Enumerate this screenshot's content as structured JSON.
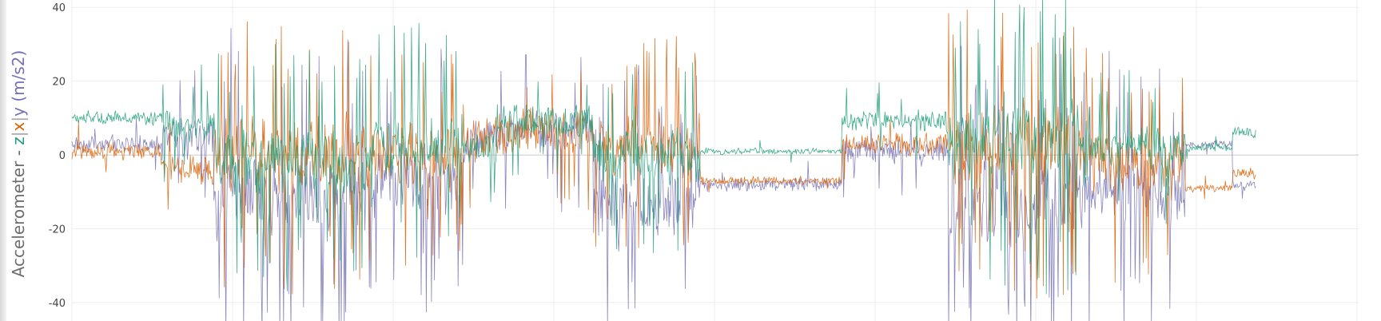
{
  "chart_data": {
    "type": "line",
    "title": "",
    "xlabel": "",
    "ylabel": {
      "prefix": "Accelerometer - ",
      "z": "z",
      "sep1": "|",
      "x": "x",
      "sep2": "|",
      "y": "y (m/s2)"
    },
    "ylim": [
      -45,
      42
    ],
    "yticks": [
      {
        "value": 40,
        "label": "40"
      },
      {
        "value": 20,
        "label": "20"
      },
      {
        "value": 0,
        "label": "0"
      },
      {
        "value": -20,
        "label": "-20"
      },
      {
        "value": -40,
        "label": "-40"
      }
    ],
    "grid": true,
    "legend": "none",
    "colors": {
      "z": "#1b9e77",
      "x": "#d95f02",
      "y": "#7570b3",
      "grid": "#eeeeee",
      "zero": "#cccccc"
    },
    "series": [
      {
        "key": "z",
        "color": "#1b9e77",
        "segments": [
          {
            "x0": 0.0,
            "x1": 0.075,
            "base": 10,
            "amp": 2.5,
            "spike": 0.04
          },
          {
            "x0": 0.075,
            "x1": 0.12,
            "base": 8,
            "amp": 6,
            "spike": 0.15
          },
          {
            "x0": 0.12,
            "x1": 0.25,
            "base": -2,
            "amp": 12,
            "spike": 0.35
          },
          {
            "x0": 0.25,
            "x1": 0.33,
            "base": 3,
            "amp": 12,
            "spike": 0.3
          },
          {
            "x0": 0.33,
            "x1": 0.36,
            "base": 2,
            "amp": 6,
            "spike": 0.1
          },
          {
            "x0": 0.36,
            "x1": 0.44,
            "base": 9,
            "amp": 6,
            "spike": 0.15
          },
          {
            "x0": 0.44,
            "x1": 0.53,
            "base": 0,
            "amp": 10,
            "spike": 0.3
          },
          {
            "x0": 0.53,
            "x1": 0.65,
            "base": 1,
            "amp": 1.2,
            "spike": 0.02
          },
          {
            "x0": 0.65,
            "x1": 0.74,
            "base": 9,
            "amp": 4,
            "spike": 0.08
          },
          {
            "x0": 0.74,
            "x1": 0.86,
            "base": 4,
            "amp": 16,
            "spike": 0.4
          },
          {
            "x0": 0.86,
            "x1": 0.94,
            "base": 2,
            "amp": 8,
            "spike": 0.2
          },
          {
            "x0": 0.94,
            "x1": 0.98,
            "base": 2,
            "amp": 1.5,
            "spike": 0.03
          },
          {
            "x0": 0.98,
            "x1": 1.0,
            "base": 6,
            "amp": 2,
            "spike": 0.02
          }
        ]
      },
      {
        "key": "x",
        "color": "#d95f02",
        "segments": [
          {
            "x0": 0.0,
            "x1": 0.075,
            "base": 1,
            "amp": 3,
            "spike": 0.04
          },
          {
            "x0": 0.075,
            "x1": 0.12,
            "base": -4,
            "amp": 6,
            "spike": 0.15
          },
          {
            "x0": 0.12,
            "x1": 0.25,
            "base": 0,
            "amp": 14,
            "spike": 0.4
          },
          {
            "x0": 0.25,
            "x1": 0.33,
            "base": 0,
            "amp": 12,
            "spike": 0.35
          },
          {
            "x0": 0.33,
            "x1": 0.36,
            "base": 4,
            "amp": 8,
            "spike": 0.15
          },
          {
            "x0": 0.36,
            "x1": 0.44,
            "base": 6,
            "amp": 8,
            "spike": 0.2
          },
          {
            "x0": 0.44,
            "x1": 0.53,
            "base": 2,
            "amp": 12,
            "spike": 0.35
          },
          {
            "x0": 0.53,
            "x1": 0.65,
            "base": -7,
            "amp": 1.5,
            "spike": 0.02
          },
          {
            "x0": 0.65,
            "x1": 0.74,
            "base": 3,
            "amp": 4,
            "spike": 0.08
          },
          {
            "x0": 0.74,
            "x1": 0.86,
            "base": 2,
            "amp": 16,
            "spike": 0.45
          },
          {
            "x0": 0.86,
            "x1": 0.94,
            "base": -2,
            "amp": 12,
            "spike": 0.3
          },
          {
            "x0": 0.94,
            "x1": 0.98,
            "base": -9,
            "amp": 1.5,
            "spike": 0.03
          },
          {
            "x0": 0.98,
            "x1": 1.0,
            "base": -5,
            "amp": 2,
            "spike": 0.02
          }
        ]
      },
      {
        "key": "y",
        "color": "#7570b3",
        "segments": [
          {
            "x0": 0.0,
            "x1": 0.075,
            "base": 3,
            "amp": 3,
            "spike": 0.04
          },
          {
            "x0": 0.075,
            "x1": 0.12,
            "base": 4,
            "amp": 8,
            "spike": 0.15
          },
          {
            "x0": 0.12,
            "x1": 0.25,
            "base": -10,
            "amp": 16,
            "spike": 0.4
          },
          {
            "x0": 0.25,
            "x1": 0.33,
            "base": -6,
            "amp": 14,
            "spike": 0.35
          },
          {
            "x0": 0.33,
            "x1": 0.36,
            "base": 4,
            "amp": 8,
            "spike": 0.15
          },
          {
            "x0": 0.36,
            "x1": 0.44,
            "base": 6,
            "amp": 8,
            "spike": 0.2
          },
          {
            "x0": 0.44,
            "x1": 0.53,
            "base": -14,
            "amp": 14,
            "spike": 0.4
          },
          {
            "x0": 0.53,
            "x1": 0.65,
            "base": -8,
            "amp": 2.5,
            "spike": 0.04
          },
          {
            "x0": 0.65,
            "x1": 0.74,
            "base": 1,
            "amp": 5,
            "spike": 0.1
          },
          {
            "x0": 0.74,
            "x1": 0.86,
            "base": -12,
            "amp": 16,
            "spike": 0.45
          },
          {
            "x0": 0.86,
            "x1": 0.94,
            "base": -10,
            "amp": 14,
            "spike": 0.35
          },
          {
            "x0": 0.94,
            "x1": 0.98,
            "base": 3,
            "amp": 1.5,
            "spike": 0.03
          },
          {
            "x0": 0.98,
            "x1": 1.0,
            "base": -8,
            "amp": 2,
            "spike": 0.02
          }
        ]
      }
    ]
  }
}
